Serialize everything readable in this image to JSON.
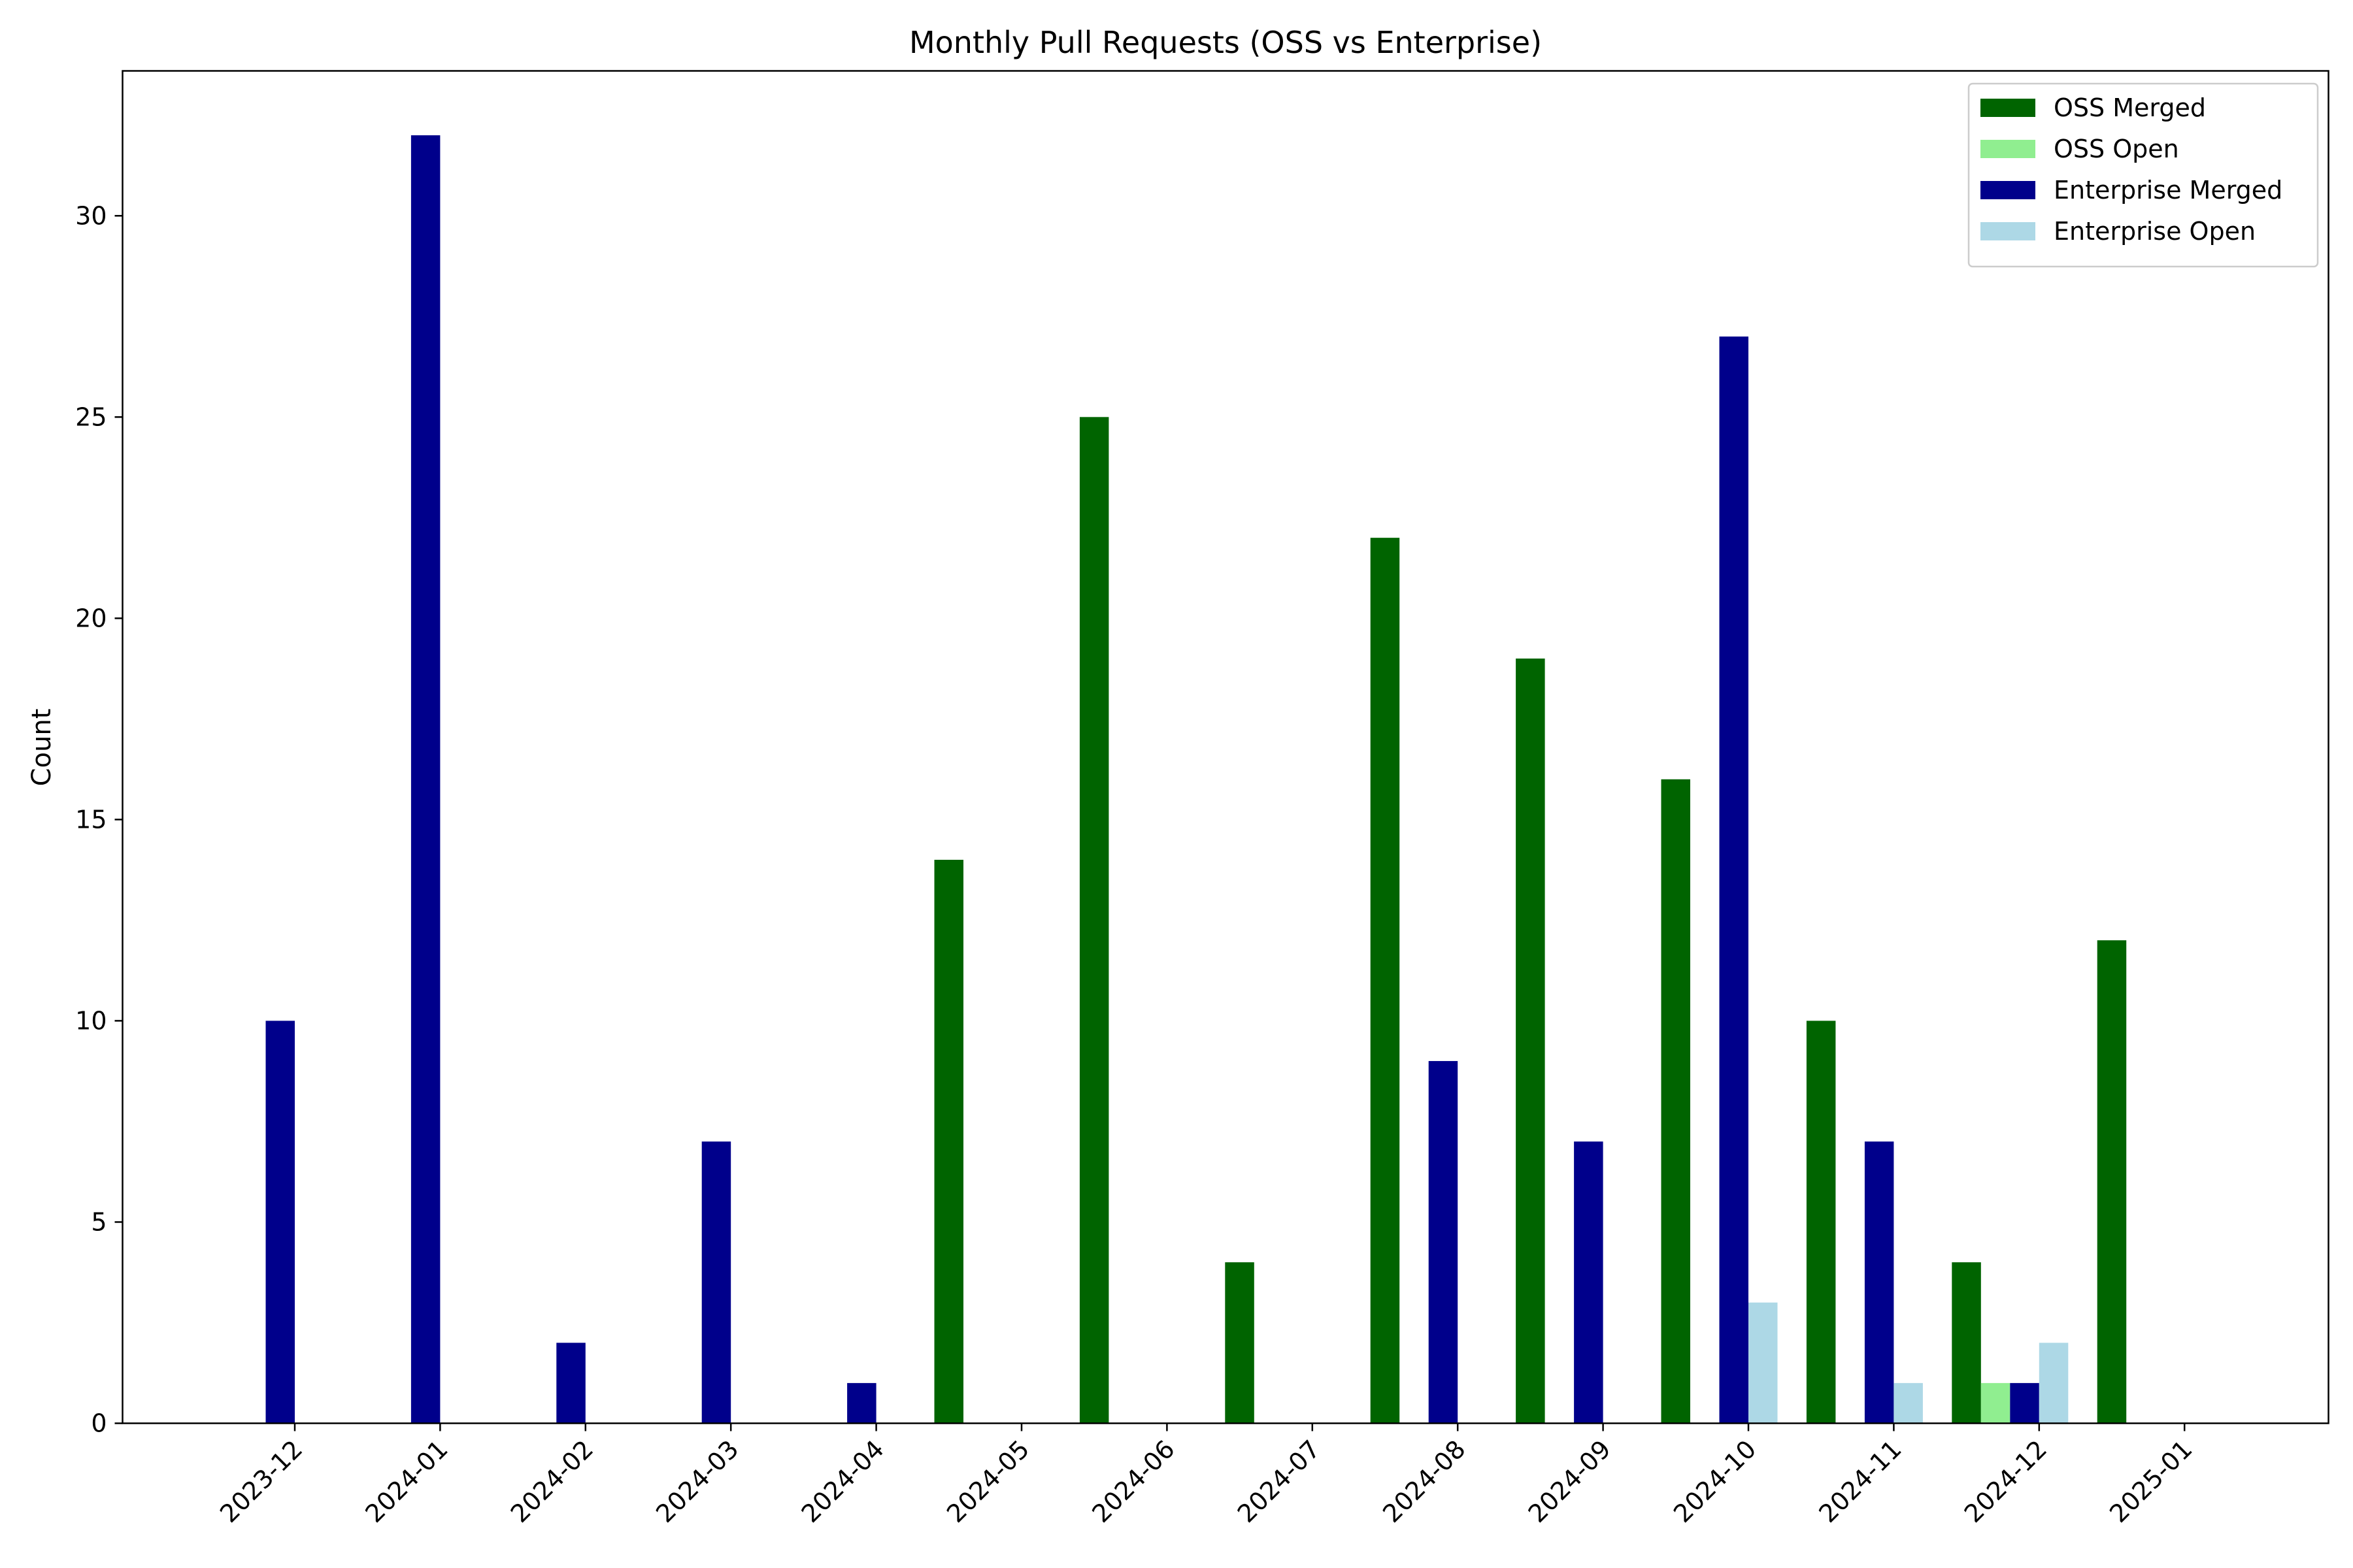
{
  "chart_data": {
    "type": "bar",
    "title": "Monthly Pull Requests (OSS vs Enterprise)",
    "xlabel": "",
    "ylabel": "Count",
    "ylim": [
      0,
      33.6
    ],
    "yticks": [
      0,
      5,
      10,
      15,
      20,
      25,
      30
    ],
    "categories": [
      "2023-12",
      "2024-01",
      "2024-02",
      "2024-03",
      "2024-04",
      "2024-05",
      "2024-06",
      "2024-07",
      "2024-08",
      "2024-09",
      "2024-10",
      "2024-11",
      "2024-12",
      "2025-01"
    ],
    "legend_position": "top-right",
    "grid": false,
    "series": [
      {
        "name": "OSS Merged",
        "color": "#006400",
        "values": [
          0,
          0,
          0,
          0,
          0,
          14,
          25,
          4,
          22,
          19,
          16,
          10,
          4,
          12
        ]
      },
      {
        "name": "OSS Open",
        "color": "#90ee90",
        "values": [
          0,
          0,
          0,
          0,
          0,
          0,
          0,
          0,
          0,
          0,
          0,
          0,
          1,
          0
        ]
      },
      {
        "name": "Enterprise Merged",
        "color": "#00008b",
        "values": [
          10,
          32,
          2,
          7,
          1,
          0,
          0,
          0,
          9,
          7,
          27,
          7,
          1,
          0
        ]
      },
      {
        "name": "Enterprise Open",
        "color": "#add8e6",
        "values": [
          0,
          0,
          0,
          0,
          0,
          0,
          0,
          0,
          0,
          0,
          3,
          1,
          2,
          0
        ]
      }
    ]
  }
}
